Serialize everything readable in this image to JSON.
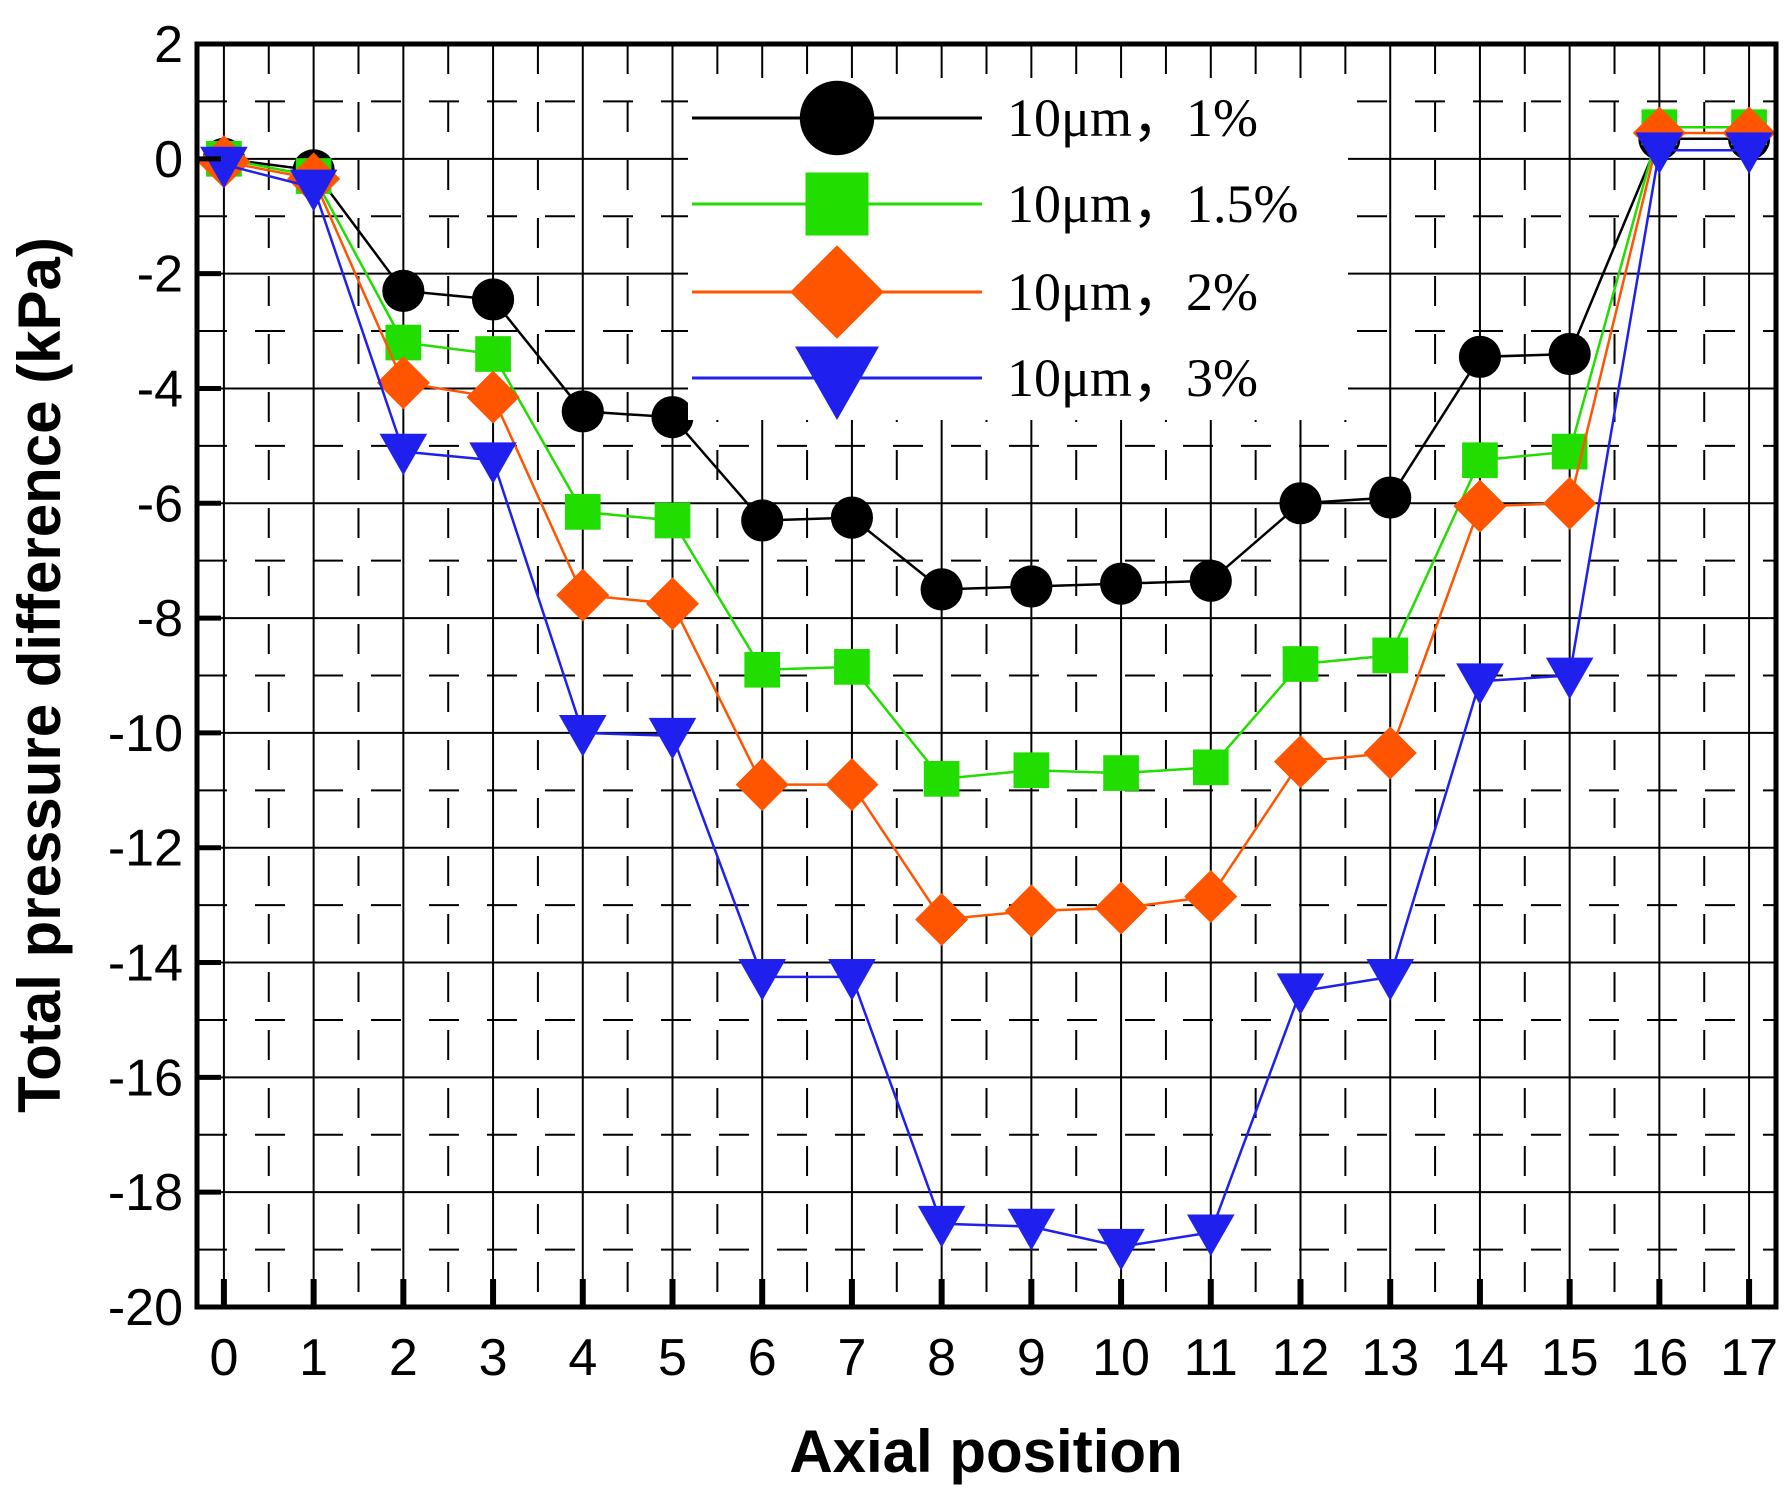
{
  "chart_data": {
    "type": "line",
    "title": "",
    "xlabel": "Axial position",
    "ylabel": "Total pressure difference (kPa)",
    "xlim": [
      -0.3,
      17.3
    ],
    "ylim": [
      -20,
      2
    ],
    "x_ticks": [
      0,
      1,
      2,
      3,
      4,
      5,
      6,
      7,
      8,
      9,
      10,
      11,
      12,
      13,
      14,
      15,
      16,
      17
    ],
    "x_tick_labels": [
      "0",
      "1",
      "2",
      "3",
      "4",
      "5",
      "6",
      "7",
      "8",
      "9",
      "10",
      "11",
      "12",
      "13",
      "14",
      "15",
      "16",
      "17"
    ],
    "y_ticks": [
      2,
      0,
      -2,
      -4,
      -6,
      -8,
      -10,
      -12,
      -14,
      -16,
      -18,
      -20
    ],
    "y_tick_labels": [
      "2",
      "0",
      "-2",
      "-4",
      "-6",
      "-8",
      "-10",
      "-12",
      "-14",
      "-16",
      "-18",
      "-20"
    ],
    "grid": true,
    "legend_position": "top-center",
    "x": [
      0,
      1,
      2,
      3,
      4,
      5,
      6,
      7,
      8,
      9,
      10,
      11,
      12,
      13,
      14,
      15,
      16,
      17
    ],
    "series": [
      {
        "name": "10μm，1%",
        "color": "#000000",
        "marker": "circle",
        "values": [
          0,
          -0.2,
          -2.3,
          -2.45,
          -4.4,
          -4.5,
          -6.3,
          -6.25,
          -7.5,
          -7.45,
          -7.4,
          -7.35,
          -6.0,
          -5.9,
          -3.45,
          -3.4,
          0.35,
          0.35
        ]
      },
      {
        "name": "10μm，1.5%",
        "color": "#22dd00",
        "marker": "square",
        "values": [
          0,
          -0.3,
          -3.2,
          -3.4,
          -6.15,
          -6.3,
          -8.9,
          -8.85,
          -10.8,
          -10.65,
          -10.7,
          -10.6,
          -8.8,
          -8.65,
          -5.25,
          -5.1,
          0.55,
          0.55
        ]
      },
      {
        "name": "10μm，2%",
        "color": "#ff5500",
        "marker": "diamond",
        "values": [
          -0.05,
          -0.35,
          -3.9,
          -4.15,
          -7.6,
          -7.75,
          -10.9,
          -10.9,
          -13.25,
          -13.1,
          -13.05,
          -12.85,
          -10.5,
          -10.35,
          -6.05,
          -6.0,
          0.45,
          0.45
        ]
      },
      {
        "name": "10μm，3%",
        "color": "#2020ee",
        "marker": "triangle-down",
        "values": [
          -0.1,
          -0.5,
          -5.1,
          -5.25,
          -10.0,
          -10.05,
          -14.25,
          -14.25,
          -18.55,
          -18.6,
          -18.95,
          -18.7,
          -14.5,
          -14.25,
          -9.1,
          -9.0,
          0.15,
          0.15
        ]
      }
    ]
  }
}
